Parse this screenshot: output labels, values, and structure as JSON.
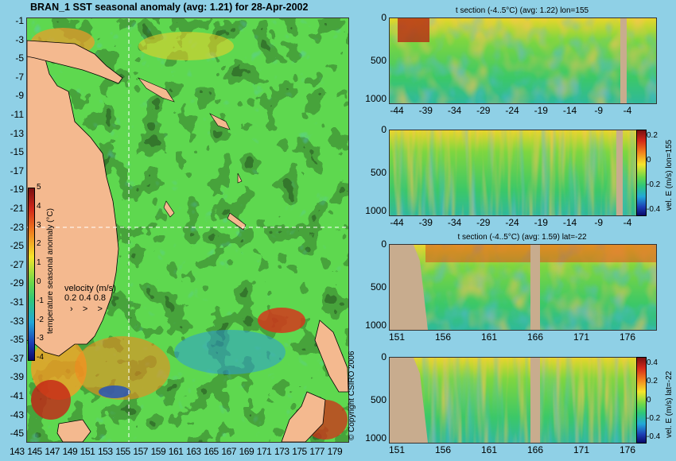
{
  "main_title": "BRAN_1 SST seasonal anomaly (avg: 1.21) for 28-Apr-2002",
  "map": {
    "lat_ticks": [
      "-1",
      "-3",
      "-5",
      "-7",
      "-9",
      "-11",
      "-13",
      "-15",
      "-17",
      "-19",
      "-21",
      "-23",
      "-25",
      "-27",
      "-29",
      "-31",
      "-33",
      "-35",
      "-37",
      "-39",
      "-41",
      "-43",
      "-45"
    ],
    "lon_ticks": [
      "143",
      "145",
      "147",
      "149",
      "151",
      "153",
      "155",
      "157",
      "159",
      "161",
      "163",
      "165",
      "167",
      "169",
      "171",
      "173",
      "175",
      "177",
      "179"
    ],
    "colorbar_ticks": [
      "5",
      "4",
      "3",
      "2",
      "1",
      "0",
      "-1",
      "-2",
      "-3",
      "-4"
    ],
    "colorbar_label": "temperature seasonal anomaly (°C)",
    "velocity_label": "velocity (m/s)",
    "velocity_ticks": "0.2 0.4 0.8",
    "copyright": "© Copyright CSIRO 2006"
  },
  "panels": [
    {
      "title": "t section (-4..5°C) (avg: 1.22) lon=155",
      "y_ticks": [
        "0",
        "500",
        "1000"
      ],
      "x_ticks": [
        "-44",
        "-39",
        "-34",
        "-29",
        "-24",
        "-19",
        "-14",
        "-9",
        "-4"
      ],
      "colorbar": false,
      "side_label": ""
    },
    {
      "title": "",
      "y_ticks": [
        "0",
        "500",
        "1000"
      ],
      "x_ticks": [
        "-44",
        "-39",
        "-34",
        "-29",
        "-24",
        "-19",
        "-14",
        "-9",
        "-4"
      ],
      "colorbar": true,
      "cb_ticks": [
        "0.2",
        "0",
        "-0.2",
        "-0.4"
      ],
      "side_label": "vel. E (m/s) lon=155"
    },
    {
      "title": "t section (-4..5°C) (avg: 1.59) lat=-22",
      "y_ticks": [
        "0",
        "500",
        "1000"
      ],
      "x_ticks": [
        "151",
        "156",
        "161",
        "166",
        "171",
        "176"
      ],
      "colorbar": false,
      "side_label": ""
    },
    {
      "title": "",
      "y_ticks": [
        "0",
        "500",
        "1000"
      ],
      "x_ticks": [
        "151",
        "156",
        "161",
        "166",
        "171",
        "176"
      ],
      "colorbar": true,
      "cb_ticks": [
        "0.4",
        "0.2",
        "0",
        "-0.2",
        "-0.4"
      ],
      "side_label": "vel. E (m/s) lat=-22"
    }
  ],
  "colors": {
    "background": "#8fd0e6",
    "land": "#f4b98f",
    "section_land": "#c8ac8e"
  },
  "chart_data": [
    {
      "type": "heatmap",
      "title": "BRAN_1 SST seasonal anomaly (avg: 1.21) for 28-Apr-2002",
      "xlim": [
        142,
        180
      ],
      "ylim": [
        -45,
        0
      ],
      "colorbar_range": [
        -4,
        5
      ],
      "colorbar_label": "temperature seasonal anomaly (°C)"
    },
    {
      "type": "heatmap",
      "title": "t section (-4..5°C) (avg: 1.22) lon=155",
      "xlim": [
        -45,
        0
      ],
      "ylim": [
        1050,
        0
      ]
    },
    {
      "type": "heatmap",
      "xlim": [
        -45,
        0
      ],
      "ylim": [
        1050,
        0
      ],
      "colorbar_label": "vel. E (m/s) lon=155"
    },
    {
      "type": "heatmap",
      "title": "t section (-4..5°C) (avg: 1.59) lat=-22",
      "xlim": [
        150,
        180
      ],
      "ylim": [
        1050,
        0
      ]
    },
    {
      "type": "heatmap",
      "xlim": [
        150,
        180
      ],
      "ylim": [
        1050,
        0
      ],
      "colorbar_range": [
        -0.4,
        0.4
      ],
      "colorbar_label": "vel. E (m/s) lat=-22"
    }
  ]
}
